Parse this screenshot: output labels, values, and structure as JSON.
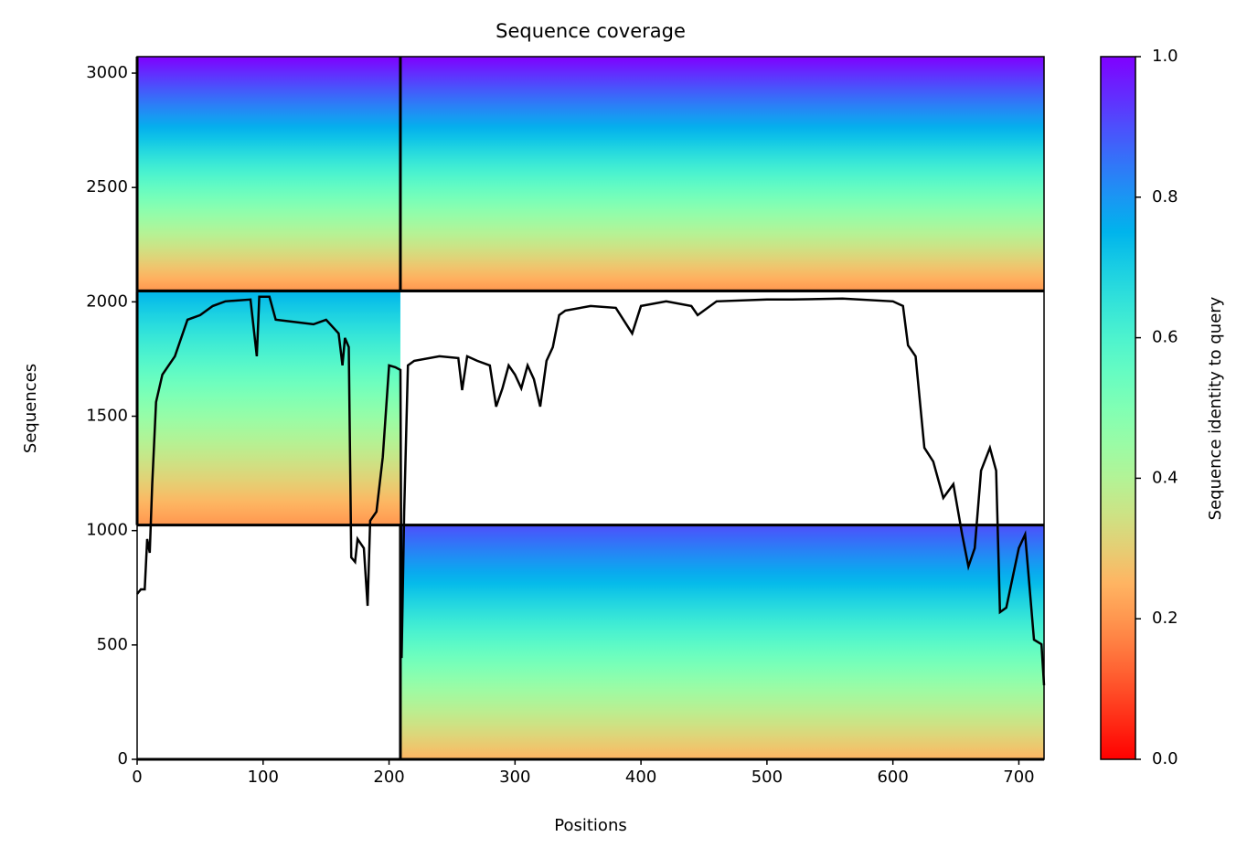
{
  "chart_data": {
    "type": "msa_coverage",
    "title": "Sequence coverage",
    "x_label": "Positions",
    "y_label": "Sequences",
    "xlim": [
      0,
      720
    ],
    "ylim": [
      0,
      3072
    ],
    "xticks": [
      0,
      100,
      200,
      300,
      400,
      500,
      600,
      700
    ],
    "yticks": [
      0,
      500,
      1000,
      1500,
      2000,
      2500,
      3000
    ],
    "colormap": "rainbow_r",
    "colorbar": {
      "label": "Sequence identity to query",
      "lim": [
        0,
        1
      ],
      "ticks": [
        {
          "value": 0,
          "label": "0.0"
        },
        0.2,
        0.4,
        0.6,
        0.8,
        {
          "value": 1,
          "label": "1.0"
        }
      ]
    },
    "blocks": [
      {
        "x": [
          0,
          209
        ],
        "y": [
          2048,
          3072
        ],
        "identity": [
          0.2,
          1.0
        ]
      },
      {
        "x": [
          209,
          720
        ],
        "y": [
          2048,
          3072
        ],
        "identity": [
          0.2,
          1.0
        ]
      },
      {
        "x": [
          0,
          209
        ],
        "y": [
          1024,
          2048
        ],
        "identity": [
          0.2,
          0.75
        ]
      },
      {
        "x": [
          209,
          720
        ],
        "y": [
          0,
          1024
        ],
        "identity": [
          0.25,
          0.9
        ]
      }
    ],
    "coverage": {
      "color": "#000000",
      "x": [
        0,
        3,
        6,
        8,
        10,
        12,
        15,
        20,
        30,
        40,
        50,
        60,
        70,
        90,
        95,
        97,
        105,
        110,
        140,
        150,
        160,
        163,
        165,
        168,
        170,
        173,
        175,
        180,
        183,
        185,
        190,
        195,
        200,
        205,
        209,
        210,
        212,
        215,
        220,
        240,
        255,
        258,
        262,
        270,
        280,
        285,
        290,
        295,
        300,
        305,
        310,
        315,
        320,
        325,
        330,
        335,
        340,
        360,
        380,
        393,
        400,
        420,
        440,
        445,
        460,
        500,
        520,
        560,
        600,
        608,
        612,
        618,
        625,
        632,
        640,
        648,
        655,
        660,
        665,
        670,
        677,
        682,
        685,
        690,
        700,
        705,
        712,
        718,
        720
      ],
      "y": [
        723,
        743,
        743,
        963,
        903,
        1203,
        1562,
        1682,
        1762,
        1922,
        1942,
        1982,
        2002,
        2010,
        1762,
        2022,
        2022,
        1922,
        1902,
        1922,
        1862,
        1722,
        1842,
        1802,
        883,
        863,
        963,
        923,
        671,
        1043,
        1083,
        1322,
        1722,
        1714,
        1702,
        443,
        1083,
        1722,
        1742,
        1762,
        1754,
        1614,
        1762,
        1742,
        1722,
        1542,
        1622,
        1722,
        1682,
        1622,
        1722,
        1662,
        1542,
        1742,
        1802,
        1942,
        1962,
        1982,
        1974,
        1862,
        1982,
        2002,
        1982,
        1942,
        2002,
        2010,
        2010,
        2014,
        2002,
        1982,
        1810,
        1762,
        1362,
        1302,
        1143,
        1203,
        983,
        843,
        923,
        1262,
        1362,
        1262,
        643,
        663,
        923,
        983,
        523,
        503,
        324
      ]
    }
  }
}
